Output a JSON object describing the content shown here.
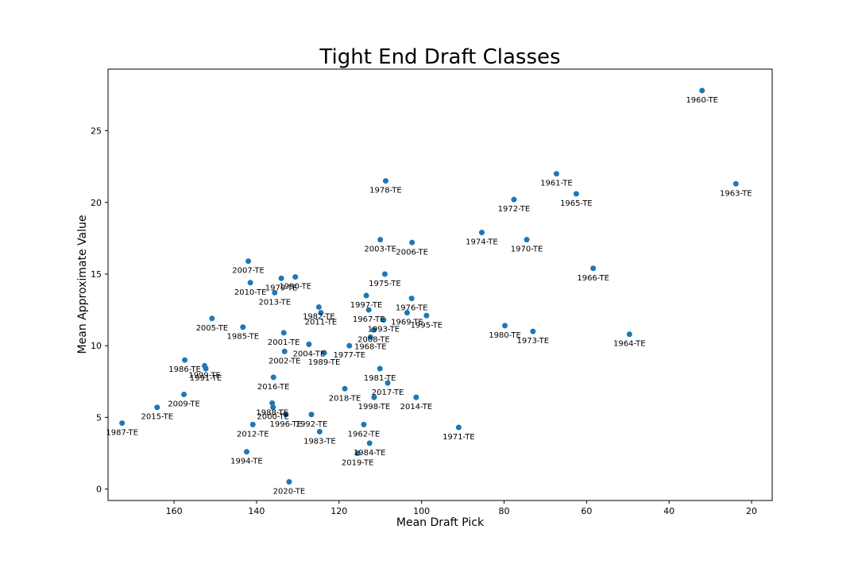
{
  "chart_data": {
    "type": "scatter",
    "title": "Tight End Draft Classes",
    "xlabel": "Mean Draft Pick",
    "ylabel": "Mean Approximate Value",
    "x_inverted": true,
    "xlim": [
      176,
      15
    ],
    "ylim": [
      -0.8,
      29.3
    ],
    "x_ticks": [
      160,
      140,
      120,
      100,
      80,
      60,
      40,
      20
    ],
    "y_ticks": [
      0,
      5,
      10,
      15,
      20,
      25
    ],
    "grid": false,
    "marker_color": "#1f77b4",
    "points": [
      {
        "label": "1960-TE",
        "x": 32,
        "y": 27.8
      },
      {
        "label": "1961-TE",
        "x": 67.3,
        "y": 22.0
      },
      {
        "label": "1962-TE",
        "x": 114,
        "y": 4.5
      },
      {
        "label": "1963-TE",
        "x": 23.8,
        "y": 21.3
      },
      {
        "label": "1964-TE",
        "x": 49.6,
        "y": 10.8
      },
      {
        "label": "1965-TE",
        "x": 62.5,
        "y": 20.6
      },
      {
        "label": "1966-TE",
        "x": 58.4,
        "y": 15.4
      },
      {
        "label": "1967-TE",
        "x": 112.8,
        "y": 12.5
      },
      {
        "label": "1968-TE",
        "x": 112.4,
        "y": 10.6
      },
      {
        "label": "1969-TE",
        "x": 103.5,
        "y": 12.3
      },
      {
        "label": "1970-TE",
        "x": 74.5,
        "y": 17.4
      },
      {
        "label": "1971-TE",
        "x": 91,
        "y": 4.3
      },
      {
        "label": "1972-TE",
        "x": 77.6,
        "y": 20.2
      },
      {
        "label": "1973-TE",
        "x": 73,
        "y": 11.0
      },
      {
        "label": "1974-TE",
        "x": 85.4,
        "y": 17.9
      },
      {
        "label": "1975-TE",
        "x": 108.9,
        "y": 15.0
      },
      {
        "label": "1976-TE",
        "x": 102.4,
        "y": 13.3
      },
      {
        "label": "1977-TE",
        "x": 117.5,
        "y": 10.0
      },
      {
        "label": "1978-TE",
        "x": 108.7,
        "y": 21.5
      },
      {
        "label": "1979-TE",
        "x": 134,
        "y": 14.7
      },
      {
        "label": "1980-TE",
        "x": 79.8,
        "y": 11.4
      },
      {
        "label": "1981-TE",
        "x": 110.1,
        "y": 8.4
      },
      {
        "label": "1982-TE",
        "x": 124.9,
        "y": 12.7
      },
      {
        "label": "1983-TE",
        "x": 124.7,
        "y": 4.0
      },
      {
        "label": "1984-TE",
        "x": 112.6,
        "y": 3.2
      },
      {
        "label": "1985-TE",
        "x": 143.3,
        "y": 11.3
      },
      {
        "label": "1986-TE",
        "x": 157.4,
        "y": 9.0
      },
      {
        "label": "1987-TE",
        "x": 172.6,
        "y": 4.6
      },
      {
        "label": "1988-TE",
        "x": 136.2,
        "y": 6.0
      },
      {
        "label": "1989-TE",
        "x": 123.6,
        "y": 9.5
      },
      {
        "label": "1990-TE",
        "x": 130.6,
        "y": 14.8
      },
      {
        "label": "1991-TE",
        "x": 152.3,
        "y": 8.4
      },
      {
        "label": "1992-TE",
        "x": 126.7,
        "y": 5.2
      },
      {
        "label": "1993-TE",
        "x": 109.2,
        "y": 11.8
      },
      {
        "label": "1994-TE",
        "x": 142.4,
        "y": 2.6
      },
      {
        "label": "1995-TE",
        "x": 98.8,
        "y": 12.1
      },
      {
        "label": "1996-TE",
        "x": 132.9,
        "y": 5.2
      },
      {
        "label": "1997-TE",
        "x": 113.4,
        "y": 13.5
      },
      {
        "label": "1998-TE",
        "x": 111.5,
        "y": 6.4
      },
      {
        "label": "1999-TE",
        "x": 152.6,
        "y": 8.6
      },
      {
        "label": "2000-TE",
        "x": 136,
        "y": 5.7
      },
      {
        "label": "2001-TE",
        "x": 133.4,
        "y": 10.9
      },
      {
        "label": "2002-TE",
        "x": 133.2,
        "y": 9.6
      },
      {
        "label": "2003-TE",
        "x": 110,
        "y": 17.4
      },
      {
        "label": "2004-TE",
        "x": 127.3,
        "y": 10.1
      },
      {
        "label": "2005-TE",
        "x": 150.8,
        "y": 11.9
      },
      {
        "label": "2006-TE",
        "x": 102.3,
        "y": 17.2
      },
      {
        "label": "2007-TE",
        "x": 142,
        "y": 15.9
      },
      {
        "label": "2008-TE",
        "x": 111.6,
        "y": 11.1
      },
      {
        "label": "2009-TE",
        "x": 157.6,
        "y": 6.6
      },
      {
        "label": "2010-TE",
        "x": 141.5,
        "y": 14.4
      },
      {
        "label": "2011-TE",
        "x": 124.4,
        "y": 12.3
      },
      {
        "label": "2012-TE",
        "x": 140.9,
        "y": 4.5
      },
      {
        "label": "2013-TE",
        "x": 135.6,
        "y": 13.7
      },
      {
        "label": "2014-TE",
        "x": 101.3,
        "y": 6.4
      },
      {
        "label": "2015-TE",
        "x": 164.1,
        "y": 5.7
      },
      {
        "label": "2016-TE",
        "x": 135.9,
        "y": 7.8
      },
      {
        "label": "2017-TE",
        "x": 108.2,
        "y": 7.4
      },
      {
        "label": "2018-TE",
        "x": 118.6,
        "y": 7.0
      },
      {
        "label": "2019-TE",
        "x": 115.5,
        "y": 2.5
      },
      {
        "label": "2020-TE",
        "x": 132.1,
        "y": 0.5
      }
    ]
  }
}
